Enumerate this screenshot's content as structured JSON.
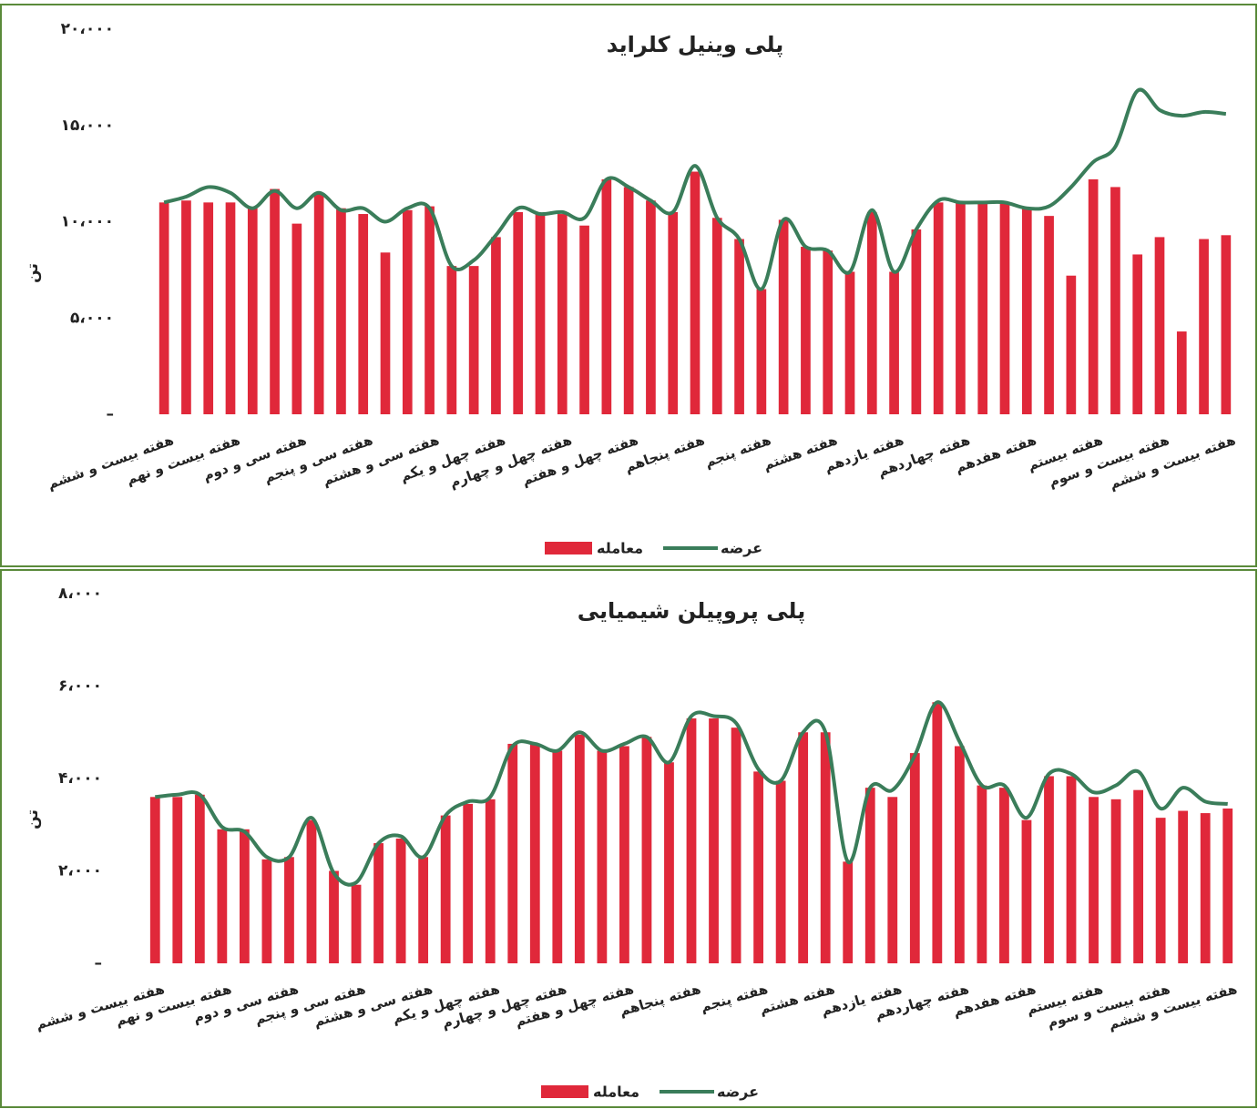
{
  "chart_data": [
    {
      "type": "bar_line",
      "title": "پلی وینیل کلراید",
      "y_label": "تن",
      "categories": [
        "هفته بیست و ششم",
        null,
        null,
        "هفته بیست و نهم",
        null,
        null,
        "هفته سی و دوم",
        null,
        null,
        "هفته سی و پنجم",
        null,
        null,
        "هفته سی و هشتم",
        null,
        null,
        "هفته چهل و یکم",
        null,
        null,
        "هفته چهل و چهارم",
        null,
        null,
        "هفته چهل و هفتم",
        null,
        null,
        "هفته پنجاهم",
        null,
        null,
        "هفته پنجم",
        null,
        null,
        "هفته هشتم",
        null,
        null,
        "هفته یازدهم",
        null,
        null,
        "هفته چهاردهم",
        null,
        null,
        "هفته هفدهم",
        null,
        null,
        "هفته بیستم",
        null,
        null,
        "هفته بیست و سوم",
        null,
        null,
        "هفته بیست و ششم"
      ],
      "series": [
        {
          "name": "معامله",
          "kind": "bar",
          "color": "#e0283a",
          "values": [
            11000,
            11100,
            11000,
            11000,
            10700,
            11700,
            9900,
            11500,
            10700,
            10400,
            8400,
            10600,
            10800,
            7700,
            7700,
            9200,
            10500,
            10400,
            10400,
            9800,
            12200,
            11800,
            11100,
            10500,
            12600,
            10200,
            9100,
            6500,
            10100,
            8700,
            8500,
            7400,
            10500,
            7400,
            9600,
            11000,
            11000,
            11000,
            11000,
            10700,
            10300,
            7200,
            12200,
            11800,
            8300,
            9200,
            4300,
            9100,
            9300
          ]
        },
        {
          "name": "عرضه",
          "kind": "line",
          "color": "#3a7d5a",
          "values": [
            11000,
            11300,
            11800,
            11500,
            10700,
            11600,
            10700,
            11500,
            10600,
            10700,
            10000,
            10700,
            10700,
            7700,
            8000,
            9300,
            10700,
            10400,
            10500,
            10200,
            12200,
            11800,
            11100,
            10500,
            12900,
            10200,
            9100,
            6500,
            10100,
            8700,
            8500,
            7400,
            10600,
            7400,
            9600,
            11100,
            11000,
            11000,
            11000,
            10700,
            10800,
            11800,
            13100,
            13900,
            16800,
            15800,
            15500,
            15700,
            15600
          ]
        }
      ],
      "ylim": [
        0,
        20000
      ],
      "yticks": [
        {
          "value": 0,
          "label": "–"
        },
        {
          "value": 5000,
          "label": "۵،۰۰۰"
        },
        {
          "value": 10000,
          "label": "۱۰،۰۰۰"
        },
        {
          "value": 15000,
          "label": "۱۵،۰۰۰"
        },
        {
          "value": 20000,
          "label": "۲۰،۰۰۰"
        }
      ],
      "grid": false,
      "legend": "bottom"
    },
    {
      "type": "bar_line",
      "title": "پلی پروپیلن شیمیایی",
      "y_label": "تن",
      "categories": [
        "هفته بیست و ششم",
        null,
        null,
        "هفته بیست و نهم",
        null,
        null,
        "هفته سی و دوم",
        null,
        null,
        "هفته سی و پنجم",
        null,
        null,
        "هفته سی و هشتم",
        null,
        null,
        "هفته چهل و یکم",
        null,
        null,
        "هفته چهل و چهارم",
        null,
        null,
        "هفته چهل و هفتم",
        null,
        null,
        "هفته پنجاهم",
        null,
        null,
        "هفته پنجم",
        null,
        null,
        "هفته هشتم",
        null,
        null,
        "هفته یازدهم",
        null,
        null,
        "هفته چهاردهم",
        null,
        null,
        "هفته هفدهم",
        null,
        null,
        "هفته بیستم",
        null,
        null,
        "هفته بیست و سوم",
        null,
        null,
        "هفته بیست و ششم"
      ],
      "series": [
        {
          "name": "معامله",
          "kind": "bar",
          "color": "#e0283a",
          "values": [
            3600,
            3600,
            3650,
            2900,
            2900,
            2250,
            2300,
            3100,
            2000,
            1700,
            2600,
            2700,
            2300,
            3200,
            3450,
            3550,
            4750,
            4750,
            4600,
            4950,
            4600,
            4700,
            4900,
            4350,
            5300,
            5300,
            5100,
            4150,
            3950,
            5000,
            5000,
            2200,
            3800,
            3600,
            4550,
            5650,
            4700,
            3850,
            3800,
            3100,
            4050,
            4050,
            3600,
            3550,
            3750,
            3150,
            3300,
            3250,
            3350
          ]
        },
        {
          "name": "عرضه",
          "kind": "line",
          "color": "#3a7d5a",
          "values": [
            3600,
            3650,
            3650,
            2950,
            2850,
            2300,
            2300,
            3150,
            1950,
            1750,
            2600,
            2750,
            2300,
            3200,
            3500,
            3600,
            4700,
            4750,
            4600,
            5000,
            4600,
            4750,
            4900,
            4350,
            5350,
            5350,
            5200,
            4200,
            3950,
            5000,
            5000,
            2200,
            3800,
            3750,
            4500,
            5650,
            4800,
            3850,
            3850,
            3150,
            4100,
            4100,
            3700,
            3850,
            4150,
            3350,
            3800,
            3500,
            3450
          ]
        }
      ],
      "ylim": [
        0,
        8000
      ],
      "yticks": [
        {
          "value": 0,
          "label": "–"
        },
        {
          "value": 2000,
          "label": "۲،۰۰۰"
        },
        {
          "value": 4000,
          "label": "۴،۰۰۰"
        },
        {
          "value": 6000,
          "label": "۶،۰۰۰"
        },
        {
          "value": 8000,
          "label": "۸،۰۰۰"
        }
      ],
      "grid": false,
      "legend": "bottom"
    }
  ]
}
